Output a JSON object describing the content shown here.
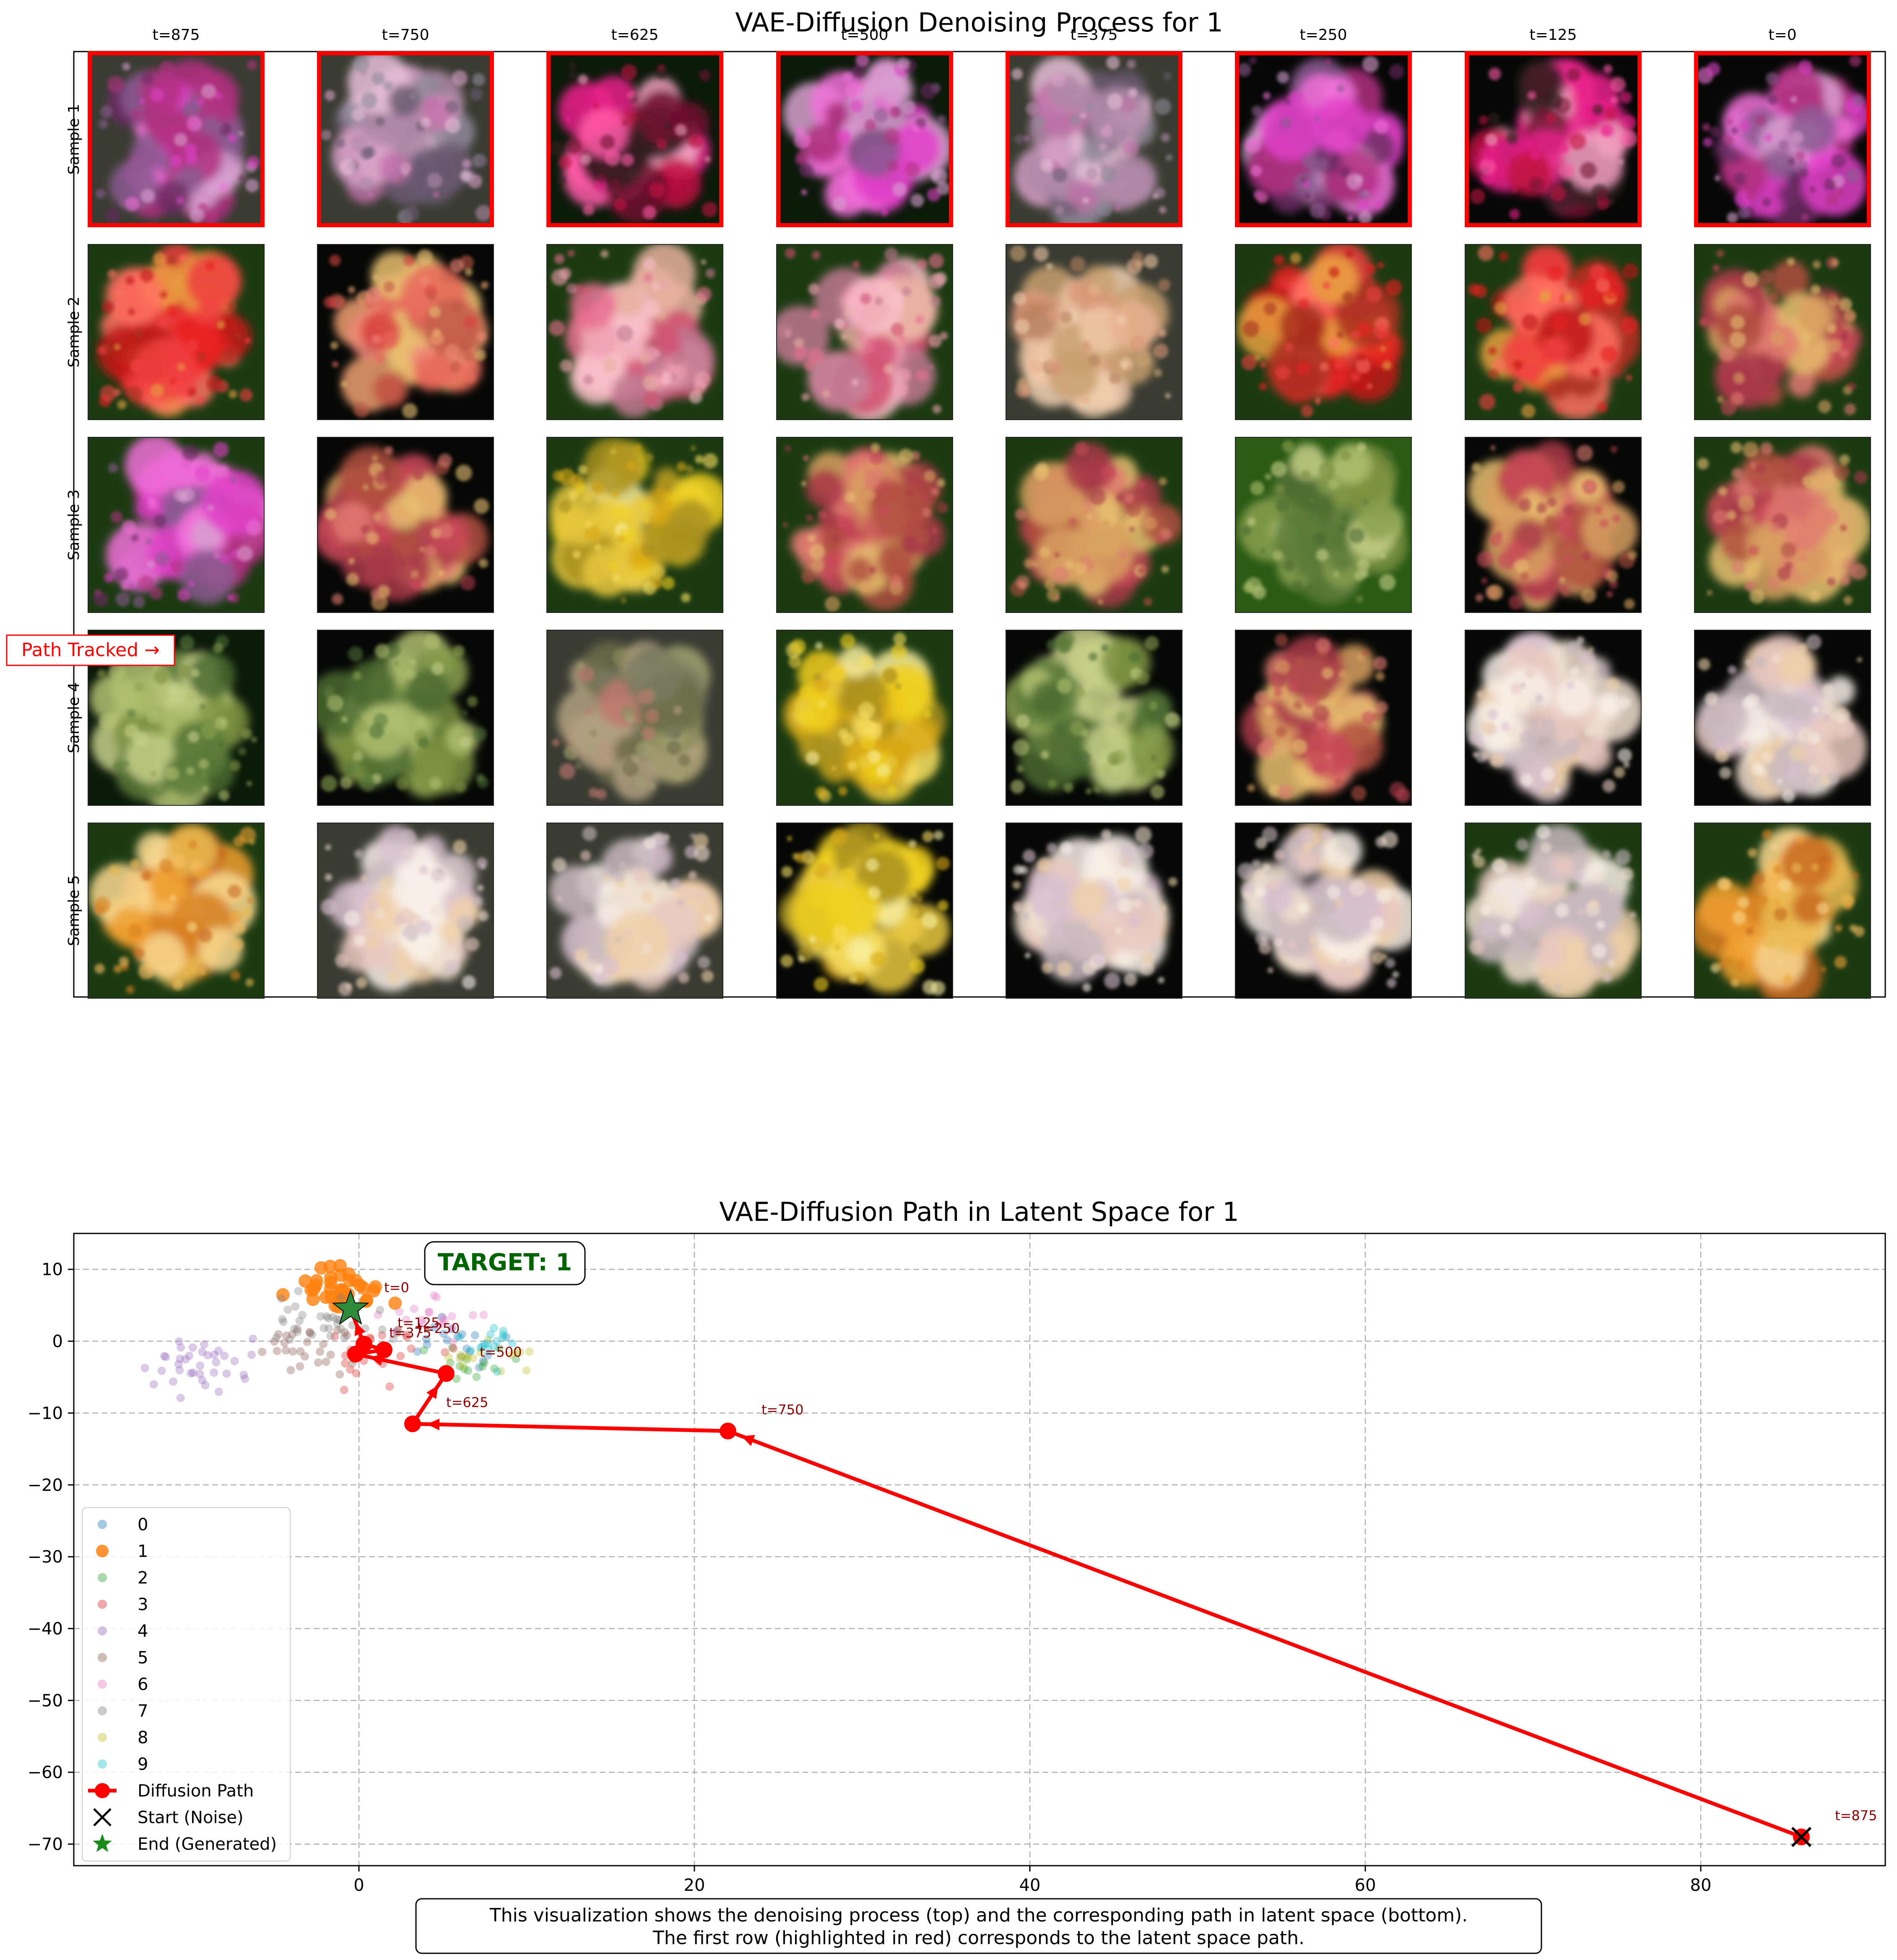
{
  "top_panel": {
    "title": "VAE-Diffusion Denoising Process for 1",
    "column_labels": [
      "t=875",
      "t=750",
      "t=625",
      "t=500",
      "t=375",
      "t=250",
      "t=125",
      "t=0"
    ],
    "row_labels": [
      "Sample 1",
      "Sample 2",
      "Sample 3",
      "Sample 4",
      "Sample 5"
    ],
    "highlighted_row": 0,
    "path_tracked_label": "Path Tracked →",
    "palettes": {
      "magenta": [
        "#e040c8",
        "#f070d8",
        "#b03080",
        "#6a2a60",
        "#d8a0d0",
        "#8a5a90"
      ],
      "mauve": [
        "#b08aa8",
        "#d8a0c8",
        "#6a5a70",
        "#c070a8",
        "#908a9a",
        "#e8c0d8"
      ],
      "hotpink": [
        "#e8208a",
        "#ff5aa8",
        "#c01040",
        "#701030",
        "#f0a0c0",
        "#302020"
      ],
      "red": [
        "#e82020",
        "#f04040",
        "#c01818",
        "#ff7060",
        "#a83020",
        "#e8a040"
      ],
      "salmon": [
        "#e86a5a",
        "#f08878",
        "#d84040",
        "#f0a070",
        "#c05848",
        "#e8c070"
      ],
      "pink": [
        "#e87090",
        "#f0a0b0",
        "#d05070",
        "#f8c0c8",
        "#c07890",
        "#e8b0a0"
      ],
      "peach": [
        "#e8b090",
        "#f0c8a8",
        "#d89878",
        "#c8a070",
        "#f0d0b0",
        "#b88060"
      ],
      "yellow": [
        "#f0d020",
        "#f8e060",
        "#d8a818",
        "#e8c840",
        "#a89020",
        "#f8f0a0"
      ],
      "orange": [
        "#f0a030",
        "#f8c060",
        "#d88020",
        "#e8b850",
        "#c86820",
        "#f8d890"
      ],
      "cream": [
        "#f0e0d0",
        "#f8f0e8",
        "#e8c8c0",
        "#d8c0d0",
        "#f0d0a8",
        "#c8b8c0"
      ],
      "olive": [
        "#8a8a5a",
        "#a0a070",
        "#6a6a48",
        "#b0a080",
        "#c07870",
        "#7a7a60"
      ],
      "greenish": [
        "#5a7a3a",
        "#8aa050",
        "#4a6a30",
        "#b0c070",
        "#7a9040",
        "#c8d088"
      ],
      "rosegreen": [
        "#c84858",
        "#e07a70",
        "#a83848",
        "#d8a060",
        "#e8c070",
        "#b05040"
      ]
    },
    "backgrounds": {
      "dark": "#0c1a0a",
      "green": "#1c3a12",
      "grey": "#3a3c32",
      "black": "#060806",
      "brightgreen": "#2a5a14"
    },
    "cells": [
      [
        {
          "pal": "magenta",
          "bg": "grey"
        },
        {
          "pal": "mauve",
          "bg": "grey"
        },
        {
          "pal": "hotpink",
          "bg": "dark"
        },
        {
          "pal": "magenta",
          "bg": "dark"
        },
        {
          "pal": "mauve",
          "bg": "grey"
        },
        {
          "pal": "magenta",
          "bg": "black"
        },
        {
          "pal": "hotpink",
          "bg": "black"
        },
        {
          "pal": "magenta",
          "bg": "black"
        }
      ],
      [
        {
          "pal": "red",
          "bg": "green"
        },
        {
          "pal": "salmon",
          "bg": "black"
        },
        {
          "pal": "pink",
          "bg": "green"
        },
        {
          "pal": "pink",
          "bg": "green"
        },
        {
          "pal": "peach",
          "bg": "grey"
        },
        {
          "pal": "red",
          "bg": "green"
        },
        {
          "pal": "red",
          "bg": "green"
        },
        {
          "pal": "rosegreen",
          "bg": "green"
        }
      ],
      [
        {
          "pal": "magenta",
          "bg": "green"
        },
        {
          "pal": "rosegreen",
          "bg": "black"
        },
        {
          "pal": "yellow",
          "bg": "green"
        },
        {
          "pal": "rosegreen",
          "bg": "green"
        },
        {
          "pal": "rosegreen",
          "bg": "green"
        },
        {
          "pal": "greenish",
          "bg": "brightgreen"
        },
        {
          "pal": "rosegreen",
          "bg": "black"
        },
        {
          "pal": "rosegreen",
          "bg": "green"
        }
      ],
      [
        {
          "pal": "greenish",
          "bg": "dark"
        },
        {
          "pal": "greenish",
          "bg": "black"
        },
        {
          "pal": "olive",
          "bg": "grey"
        },
        {
          "pal": "yellow",
          "bg": "green"
        },
        {
          "pal": "greenish",
          "bg": "black"
        },
        {
          "pal": "rosegreen",
          "bg": "black"
        },
        {
          "pal": "cream",
          "bg": "black"
        },
        {
          "pal": "cream",
          "bg": "black"
        }
      ],
      [
        {
          "pal": "orange",
          "bg": "green"
        },
        {
          "pal": "cream",
          "bg": "grey"
        },
        {
          "pal": "cream",
          "bg": "grey"
        },
        {
          "pal": "yellow",
          "bg": "black"
        },
        {
          "pal": "cream",
          "bg": "black"
        },
        {
          "pal": "cream",
          "bg": "black"
        },
        {
          "pal": "cream",
          "bg": "green"
        },
        {
          "pal": "orange",
          "bg": "green"
        }
      ]
    ]
  },
  "chart_data": {
    "type": "scatter",
    "title": "VAE-Diffusion Path in Latent Space for 1",
    "xlabel": "",
    "ylabel": "",
    "xlim": [
      -17,
      91
    ],
    "ylim": [
      -73,
      15
    ],
    "xticks": [
      0,
      20,
      40,
      60,
      80
    ],
    "yticks": [
      10,
      0,
      -10,
      -20,
      -30,
      -40,
      -50,
      -60,
      -70
    ],
    "grid": true,
    "legend_position": "lower-left",
    "target_label": "TARGET: 1",
    "class_colors": [
      "#1f77b4",
      "#ff7f0e",
      "#2ca02c",
      "#d62728",
      "#9467bd",
      "#8c564b",
      "#e377c2",
      "#7f7f7f",
      "#bcbd22",
      "#17becf"
    ],
    "clusters": [
      {
        "name": "0",
        "center": [
          6.0,
          0.5
        ],
        "spread": [
          2.4,
          3.0
        ],
        "count": 18
      },
      {
        "name": "1",
        "center": [
          -1.0,
          7.5
        ],
        "spread": [
          2.3,
          2.6
        ],
        "count": 34
      },
      {
        "name": "2",
        "center": [
          6.5,
          -3.0
        ],
        "spread": [
          2.0,
          2.4
        ],
        "count": 14
      },
      {
        "name": "3",
        "center": [
          2.0,
          -2.0
        ],
        "spread": [
          3.6,
          3.4
        ],
        "count": 22
      },
      {
        "name": "4",
        "center": [
          -9.5,
          -3.0
        ],
        "spread": [
          3.0,
          3.0
        ],
        "count": 36
      },
      {
        "name": "5",
        "center": [
          -2.5,
          -1.0
        ],
        "spread": [
          3.2,
          2.6
        ],
        "count": 30
      },
      {
        "name": "6",
        "center": [
          4.5,
          3.5
        ],
        "spread": [
          2.6,
          2.4
        ],
        "count": 20
      },
      {
        "name": "7",
        "center": [
          -2.0,
          3.0
        ],
        "spread": [
          3.2,
          2.8
        ],
        "count": 34
      },
      {
        "name": "8",
        "center": [
          7.5,
          -2.0
        ],
        "spread": [
          2.2,
          2.6
        ],
        "count": 16
      },
      {
        "name": "9",
        "center": [
          8.0,
          0.0
        ],
        "spread": [
          2.0,
          2.4
        ],
        "count": 16
      }
    ],
    "path": {
      "name": "Diffusion Path",
      "color": "#ff0000",
      "points": [
        {
          "t": "t=875",
          "x": 86.0,
          "y": -69.0
        },
        {
          "t": "t=750",
          "x": 22.0,
          "y": -12.5
        },
        {
          "t": "t=625",
          "x": 3.2,
          "y": -11.5
        },
        {
          "t": "t=500",
          "x": 5.2,
          "y": -4.5
        },
        {
          "t": "t=375",
          "x": -0.2,
          "y": -1.8
        },
        {
          "t": "t=250",
          "x": 1.5,
          "y": -1.2
        },
        {
          "t": "t=125",
          "x": 0.3,
          "y": -0.4
        },
        {
          "t": "t=0",
          "x": -0.5,
          "y": 4.5
        }
      ]
    },
    "start": {
      "name": "Start (Noise)",
      "x": 86.0,
      "y": -69.0
    },
    "end": {
      "name": "End (Generated)",
      "x": -0.5,
      "y": 4.5
    },
    "legend": [
      "0",
      "1",
      "2",
      "3",
      "4",
      "5",
      "6",
      "7",
      "8",
      "9",
      "Diffusion Path",
      "Start (Noise)",
      "End (Generated)"
    ]
  },
  "caption": {
    "line1": "This visualization shows the denoising process (top) and the corresponding path in latent space (bottom).",
    "line2": "The first row (highlighted in red) corresponds to the latent space path."
  }
}
